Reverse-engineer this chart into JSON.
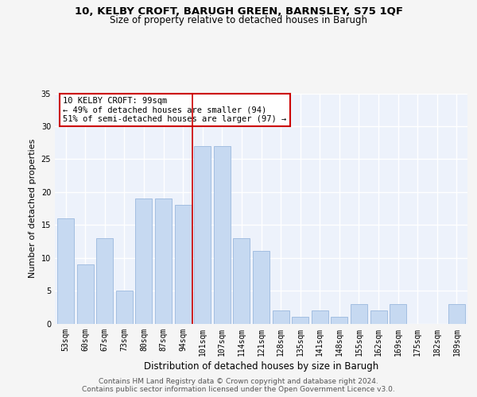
{
  "title1": "10, KELBY CROFT, BARUGH GREEN, BARNSLEY, S75 1QF",
  "title2": "Size of property relative to detached houses in Barugh",
  "xlabel": "Distribution of detached houses by size in Barugh",
  "ylabel": "Number of detached properties",
  "categories": [
    "53sqm",
    "60sqm",
    "67sqm",
    "73sqm",
    "80sqm",
    "87sqm",
    "94sqm",
    "101sqm",
    "107sqm",
    "114sqm",
    "121sqm",
    "128sqm",
    "135sqm",
    "141sqm",
    "148sqm",
    "155sqm",
    "162sqm",
    "169sqm",
    "175sqm",
    "182sqm",
    "189sqm"
  ],
  "values": [
    16,
    9,
    13,
    5,
    19,
    19,
    18,
    27,
    27,
    13,
    11,
    2,
    1,
    2,
    1,
    3,
    2,
    3,
    0,
    0,
    3
  ],
  "bar_color": "#c6d9f1",
  "bar_edge_color": "#9ab8de",
  "vline_x_index": 7,
  "vline_color": "#cc0000",
  "annotation_text": "10 KELBY CROFT: 99sqm\n← 49% of detached houses are smaller (94)\n51% of semi-detached houses are larger (97) →",
  "annotation_box_color": "#ffffff",
  "annotation_box_edge": "#cc0000",
  "ylim": [
    0,
    35
  ],
  "yticks": [
    0,
    5,
    10,
    15,
    20,
    25,
    30,
    35
  ],
  "footer_text": "Contains HM Land Registry data © Crown copyright and database right 2024.\nContains public sector information licensed under the Open Government Licence v3.0.",
  "bg_color": "#edf2fb",
  "grid_color": "#ffffff",
  "title1_fontsize": 9.5,
  "title2_fontsize": 8.5,
  "xlabel_fontsize": 8.5,
  "ylabel_fontsize": 8,
  "tick_fontsize": 7,
  "annotation_fontsize": 7.5
}
